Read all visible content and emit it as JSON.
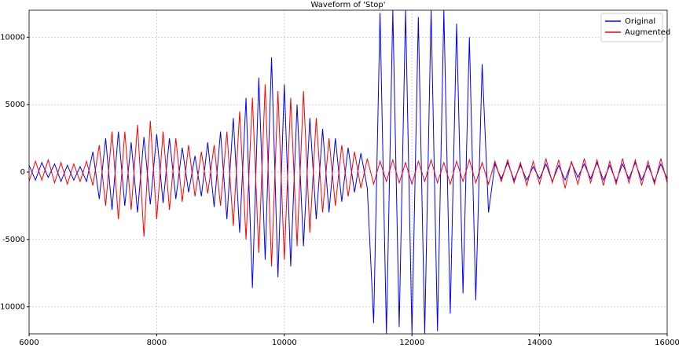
{
  "chart_data": {
    "type": "line",
    "title": "Waveform of 'Stop'",
    "x": [
      6000,
      6100,
      6200,
      6300,
      6400,
      6500,
      6600,
      6700,
      6800,
      6900,
      7000,
      7100,
      7200,
      7300,
      7400,
      7500,
      7600,
      7700,
      7800,
      7900,
      8000,
      8100,
      8200,
      8300,
      8400,
      8500,
      8600,
      8700,
      8800,
      8900,
      9000,
      9100,
      9200,
      9300,
      9400,
      9500,
      9600,
      9700,
      9800,
      9900,
      10000,
      10100,
      10200,
      10300,
      10400,
      10500,
      10600,
      10700,
      10800,
      10900,
      11000,
      11100,
      11200,
      11300,
      11400,
      11500,
      11600,
      11700,
      11800,
      11900,
      12000,
      12100,
      12200,
      12300,
      12400,
      12500,
      12600,
      12700,
      12800,
      12900,
      13000,
      13100,
      13200,
      13300,
      13400,
      13500,
      13600,
      13700,
      13800,
      13900,
      14000,
      14100,
      14200,
      14300,
      14400,
      14500,
      14600,
      14700,
      14800,
      14900,
      15000,
      15100,
      15200,
      15300,
      15400,
      15500,
      15600,
      15700,
      15800,
      15900,
      16000
    ],
    "series": [
      {
        "name": "Original",
        "color": "#0000ff",
        "values": [
          500,
          -600,
          700,
          -400,
          600,
          -700,
          500,
          -600,
          400,
          -700,
          1500,
          -2000,
          2500,
          -2800,
          3000,
          -2500,
          2200,
          -3000,
          2600,
          -2400,
          2800,
          -2300,
          2500,
          -2000,
          1800,
          -1500,
          1200,
          -1800,
          2200,
          -2600,
          3000,
          -3500,
          4000,
          -4500,
          5500,
          -8600,
          7000,
          -6500,
          8500,
          -7800,
          6500,
          -7000,
          5000,
          -5500,
          4000,
          -3500,
          3200,
          -3000,
          2500,
          -2200,
          1800,
          -1500,
          1400,
          -1200,
          -11200,
          11800,
          -12000,
          12000,
          -11500,
          12000,
          -12000,
          11500,
          -12000,
          12000,
          -11800,
          12000,
          -10500,
          11000,
          -9000,
          10000,
          -9500,
          8000,
          -3000,
          600,
          -500,
          700,
          -600,
          500,
          -600,
          400,
          -500,
          600,
          -700,
          500,
          -600,
          700,
          -400,
          600,
          -500,
          700,
          -600,
          500,
          -700,
          600,
          -500,
          700,
          -600,
          500,
          -700,
          600,
          -500
        ]
      },
      {
        "name": "Augmented",
        "color": "#ff0000",
        "values": [
          -700,
          800,
          -600,
          900,
          -800,
          700,
          -900,
          600,
          -700,
          800,
          -1000,
          2000,
          -2500,
          3000,
          -3500,
          3000,
          -2800,
          3500,
          -4800,
          3800,
          -3500,
          3000,
          -2800,
          2500,
          -2200,
          2000,
          -1800,
          1500,
          -1600,
          2000,
          -2500,
          3000,
          -4000,
          4500,
          -5000,
          5500,
          -6000,
          6500,
          -7000,
          6000,
          -6500,
          5500,
          -5500,
          6000,
          -4500,
          4000,
          -3000,
          2500,
          -2500,
          2000,
          -1800,
          1500,
          -1200,
          1000,
          -900,
          800,
          -700,
          900,
          -800,
          700,
          -900,
          800,
          -700,
          900,
          -800,
          700,
          -900,
          800,
          -700,
          900,
          -800,
          700,
          -900,
          800,
          -700,
          900,
          -800,
          700,
          -1000,
          800,
          -900,
          1000,
          -800,
          900,
          -1200,
          800,
          -900,
          1000,
          -800,
          900,
          -1000,
          800,
          -900,
          1000,
          -800,
          900,
          -1000,
          800,
          -900,
          1000,
          -800
        ]
      }
    ],
    "xlim": [
      6000,
      16000
    ],
    "xticks": [
      6000,
      8000,
      10000,
      12000,
      14000,
      16000
    ],
    "ylim": [
      -12000,
      12000
    ],
    "yticks": [
      -10000,
      -5000,
      0,
      5000,
      10000
    ],
    "grid": true,
    "legend": "upper right"
  }
}
